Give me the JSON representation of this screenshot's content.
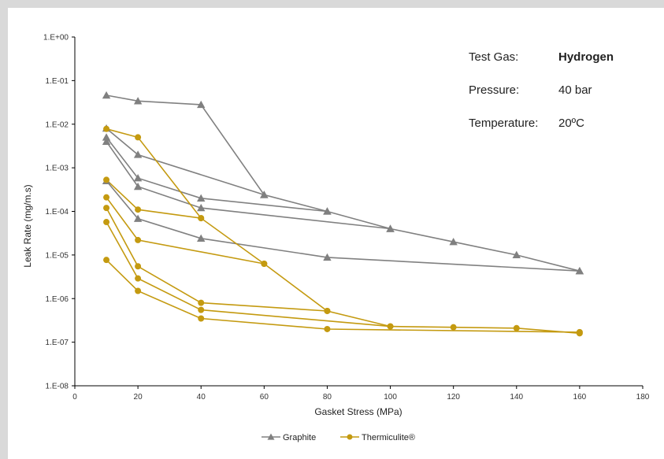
{
  "chart_data": {
    "type": "line",
    "title": "",
    "xlabel": "Gasket Stress  (MPa)",
    "ylabel": "Leak Rate  (mg/m.s)",
    "xlim": [
      0,
      180
    ],
    "xticks": [
      "0",
      "20",
      "40",
      "60",
      "80",
      "100",
      "120",
      "140",
      "160",
      "180"
    ],
    "ylim": [
      1e-08,
      1
    ],
    "yscale": "log",
    "yticks": [
      "1.E+00",
      "1.E-01",
      "1.E-02",
      "1.E-03",
      "1.E-04",
      "1.E-05",
      "1.E-06",
      "1.E-07",
      "1.E-08"
    ],
    "grid": false,
    "legend_position": "bottom-center",
    "legend": [
      {
        "label": "Graphite",
        "color": "#808080",
        "marker": "triangle"
      },
      {
        "label": "Thermiculite®",
        "color": "#c49a10",
        "marker": "circle"
      }
    ],
    "series": [
      {
        "group": "Graphite",
        "points": [
          [
            10,
            0.046
          ],
          [
            20,
            0.034
          ],
          [
            40,
            0.028
          ],
          [
            60,
            0.00024
          ],
          [
            80,
            0.0001
          ],
          [
            100,
            4e-05
          ],
          [
            120,
            2e-05
          ],
          [
            140,
            1e-05
          ],
          [
            160,
            4.3e-06
          ]
        ]
      },
      {
        "group": "Graphite",
        "points": [
          [
            10,
            0.008
          ],
          [
            20,
            0.002
          ],
          [
            60,
            0.00024
          ]
        ]
      },
      {
        "group": "Graphite",
        "points": [
          [
            10,
            0.005
          ],
          [
            20,
            0.00058
          ],
          [
            40,
            0.0002
          ],
          [
            80,
            0.0001
          ]
        ]
      },
      {
        "group": "Graphite",
        "points": [
          [
            10,
            0.004
          ],
          [
            20,
            0.00037
          ],
          [
            40,
            0.00012
          ],
          [
            100,
            4e-05
          ]
        ]
      },
      {
        "group": "Graphite",
        "points": [
          [
            10,
            0.0005
          ],
          [
            20,
            6.8e-05
          ],
          [
            40,
            2.4e-05
          ],
          [
            80,
            8.8e-06
          ],
          [
            160,
            4.3e-06
          ]
        ]
      },
      {
        "group": "Thermiculite®",
        "points": [
          [
            10,
            0.0078
          ],
          [
            20,
            0.005
          ],
          [
            40,
            7e-05
          ],
          [
            60,
            6.3e-06
          ],
          [
            80,
            5.2e-07
          ],
          [
            100,
            2.3e-07
          ],
          [
            120,
            2.2e-07
          ],
          [
            140,
            2.1e-07
          ],
          [
            160,
            1.6e-07
          ]
        ]
      },
      {
        "group": "Thermiculite®",
        "points": [
          [
            10,
            0.00053
          ],
          [
            20,
            0.00011
          ],
          [
            40,
            7e-05
          ]
        ]
      },
      {
        "group": "Thermiculite®",
        "points": [
          [
            10,
            0.00021
          ],
          [
            20,
            2.2e-05
          ],
          [
            60,
            6.3e-06
          ]
        ]
      },
      {
        "group": "Thermiculite®",
        "points": [
          [
            10,
            0.00012
          ],
          [
            20,
            5.5e-06
          ],
          [
            40,
            8e-07
          ],
          [
            80,
            5.2e-07
          ]
        ]
      },
      {
        "group": "Thermiculite®",
        "points": [
          [
            10,
            5.7e-05
          ],
          [
            20,
            2.9e-06
          ],
          [
            40,
            5.5e-07
          ],
          [
            100,
            2.3e-07
          ]
        ]
      },
      {
        "group": "Thermiculite®",
        "points": [
          [
            10,
            7.7e-06
          ],
          [
            20,
            1.5e-06
          ],
          [
            40,
            3.5e-07
          ],
          [
            80,
            2e-07
          ],
          [
            160,
            1.7e-07
          ]
        ]
      }
    ]
  },
  "info_box": {
    "rows": [
      {
        "label": "Test Gas:",
        "value": "Hydrogen",
        "bold": true
      },
      {
        "label": "Pressure:",
        "value": "40 bar",
        "bold": false
      },
      {
        "label": "Temperature:",
        "value": "20ºC",
        "bold": false
      }
    ]
  },
  "colors": {
    "graphite": "#808080",
    "thermiculite": "#c49a10",
    "axis": "#000000",
    "background": "#ffffff",
    "border": "#d9d9d9"
  }
}
